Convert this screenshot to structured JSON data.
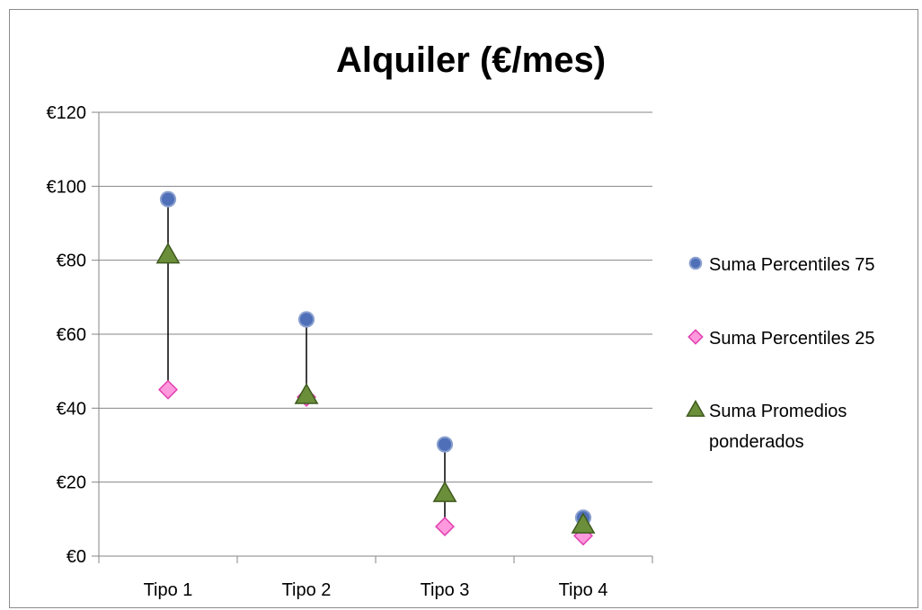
{
  "chart_data": {
    "type": "scatter",
    "title": "Alquiler (€/mes)",
    "xlabel": "",
    "ylabel": "",
    "categories": [
      "Tipo 1",
      "Tipo 2",
      "Tipo 3",
      "Tipo 4"
    ],
    "y_ticks": [
      "€0",
      "€20",
      "€40",
      "€60",
      "€80",
      "€100",
      "€120"
    ],
    "ylim": [
      0,
      120
    ],
    "grid": true,
    "legend_position": "right",
    "high_low_lines": true,
    "series": [
      {
        "name": "Suma Percentiles 75",
        "legend_lines": [
          "Suma Percentiles 75"
        ],
        "marker": "circle",
        "color": "#4f6fb8",
        "values": [
          96.5,
          64,
          30.2,
          10.4
        ]
      },
      {
        "name": "Suma Percentiles 25",
        "legend_lines": [
          "Suma Percentiles 25"
        ],
        "marker": "diamond",
        "color": "#ff99dd",
        "values": [
          45,
          43,
          8,
          5.5
        ]
      },
      {
        "name": "Suma Promedios ponderados",
        "legend_lines": [
          "Suma Promedios",
          "ponderados"
        ],
        "marker": "triangle",
        "color": "#6b8e3a",
        "values": [
          81.5,
          43.5,
          17,
          8.5
        ]
      }
    ]
  }
}
